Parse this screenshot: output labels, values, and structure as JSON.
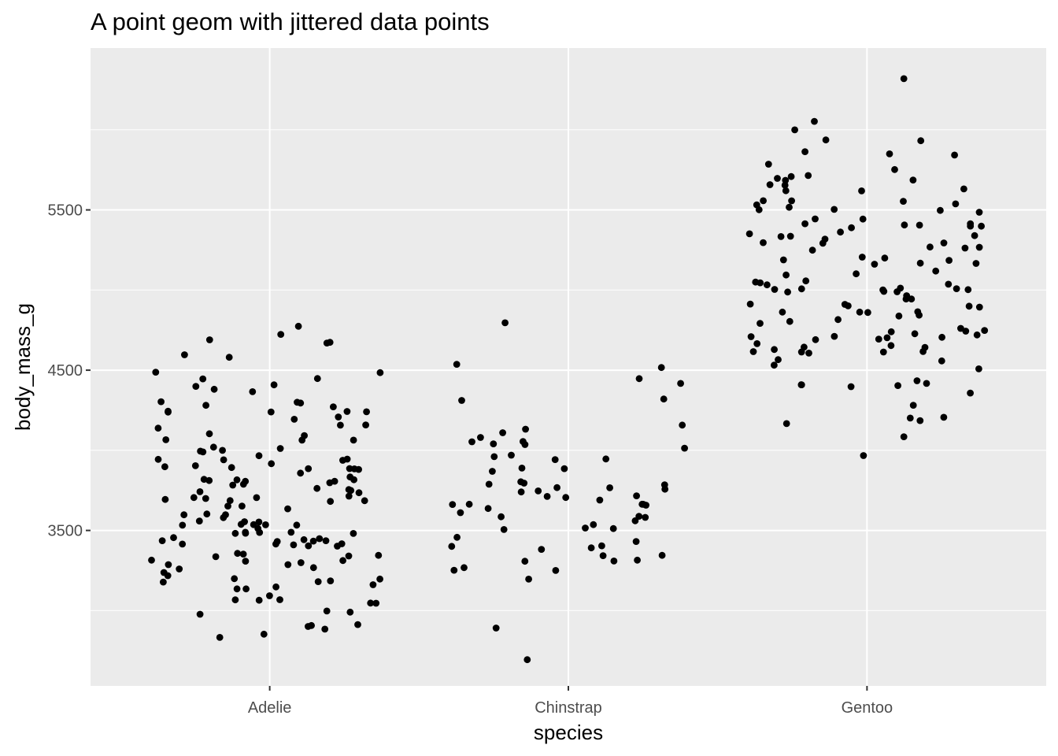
{
  "chart_data": {
    "type": "scatter",
    "title": "A point geom with jittered data points",
    "xlabel": "species",
    "ylabel": "body_mass_g",
    "categories": [
      "Adelie",
      "Chinstrap",
      "Gentoo"
    ],
    "y_ticks": [
      3500,
      4500,
      5500
    ],
    "ylim": [
      2530,
      6510
    ],
    "grid": true,
    "jitter_width": 0.4,
    "point_color": "#000000",
    "panel_background": "#ebebeb",
    "grid_color": "#ffffff",
    "series": [
      {
        "category": "Adelie",
        "values": [
          3750,
          3800,
          3250,
          3450,
          3650,
          3625,
          4675,
          3475,
          4250,
          3300,
          3700,
          3200,
          3800,
          4400,
          3700,
          3450,
          4500,
          3325,
          4200,
          3400,
          3600,
          3800,
          3950,
          3800,
          3800,
          3550,
          3200,
          3150,
          3950,
          3250,
          3900,
          3300,
          3900,
          3325,
          4150,
          3950,
          3550,
          3300,
          4650,
          3150,
          3900,
          3100,
          4400,
          3000,
          4600,
          3425,
          2975,
          3450,
          4150,
          3500,
          4300,
          3450,
          4050,
          2900,
          3700,
          3550,
          3800,
          2850,
          3750,
          3150,
          4400,
          3600,
          4050,
          2850,
          3950,
          3350,
          4100,
          3050,
          4450,
          3600,
          3900,
          3550,
          4150,
          3700,
          4250,
          3700,
          3900,
          3550,
          4000,
          3200,
          4700,
          3800,
          4200,
          3350,
          3550,
          3800,
          3500,
          3950,
          3600,
          3550,
          4300,
          3400,
          4450,
          3300,
          4300,
          3700,
          4350,
          2900,
          4100,
          3725,
          4725,
          3075,
          4250,
          2925,
          3550,
          3750,
          3900,
          3175,
          4775,
          3825,
          4600,
          3200,
          4275,
          3900,
          4075,
          2900,
          3775,
          3350,
          3325,
          3150,
          3500,
          3450,
          3875,
          3050,
          4000,
          3275,
          4300,
          3050,
          4000,
          3325,
          3500,
          3500,
          4475,
          3425,
          3900,
          3175,
          3975,
          3400,
          4250,
          3400,
          3475,
          3050,
          3725,
          3000,
          3650,
          4250,
          3475,
          3450,
          3750,
          3700,
          4000
        ]
      },
      {
        "category": "Chinstrap",
        "values": [
          3500,
          3900,
          3650,
          3525,
          3725,
          3950,
          3250,
          3750,
          4150,
          3700,
          3800,
          3775,
          3700,
          4050,
          3575,
          4050,
          3300,
          3700,
          3450,
          4400,
          3600,
          3400,
          2900,
          3800,
          3300,
          4150,
          3400,
          3800,
          3700,
          4550,
          3200,
          4300,
          3350,
          4100,
          3600,
          3900,
          3850,
          4800,
          2700,
          4500,
          3950,
          3650,
          3550,
          3500,
          3675,
          4450,
          3400,
          4300,
          3250,
          3675,
          3325,
          3950,
          3600,
          4050,
          3350,
          3450,
          3250,
          4050,
          3800,
          3525,
          3950,
          3650,
          3650,
          4000,
          3400,
          3775,
          4100,
          3775
        ]
      },
      {
        "category": "Gentoo",
        "values": [
          4500,
          5700,
          4450,
          5700,
          5400,
          4550,
          4800,
          5200,
          4400,
          5150,
          4650,
          5550,
          4650,
          5850,
          4200,
          5850,
          4150,
          6300,
          4800,
          5350,
          5700,
          5000,
          4400,
          5050,
          5000,
          5100,
          4100,
          5650,
          4600,
          5550,
          5250,
          4700,
          5050,
          6050,
          5150,
          5400,
          4950,
          5250,
          4350,
          5350,
          3950,
          5700,
          4300,
          4750,
          5550,
          4900,
          4200,
          5400,
          5100,
          5300,
          4850,
          5300,
          4400,
          5000,
          4600,
          5050,
          5000,
          5950,
          4625,
          5500,
          4725,
          5500,
          4700,
          5500,
          4200,
          5500,
          4650,
          5750,
          4900,
          5250,
          4400,
          5100,
          4850,
          5300,
          4600,
          5400,
          4900,
          5050,
          4400,
          5000,
          4850,
          5450,
          4700,
          5350,
          4850,
          5500,
          4700,
          5600,
          4900,
          5800,
          4600,
          5700,
          4600,
          5050,
          4950,
          5350,
          4700,
          5400,
          5000,
          5650,
          4575,
          5550,
          4750,
          5350,
          4750,
          5150,
          4550,
          5850,
          4650,
          5200,
          5000,
          5400,
          4750,
          5200,
          5000,
          4675,
          5950,
          4825,
          5400,
          5000,
          6000,
          4725,
          5600,
          5300,
          4875,
          5550,
          4950,
          5450,
          5200,
          5650,
          4900,
          5250,
          4800
        ]
      }
    ]
  }
}
